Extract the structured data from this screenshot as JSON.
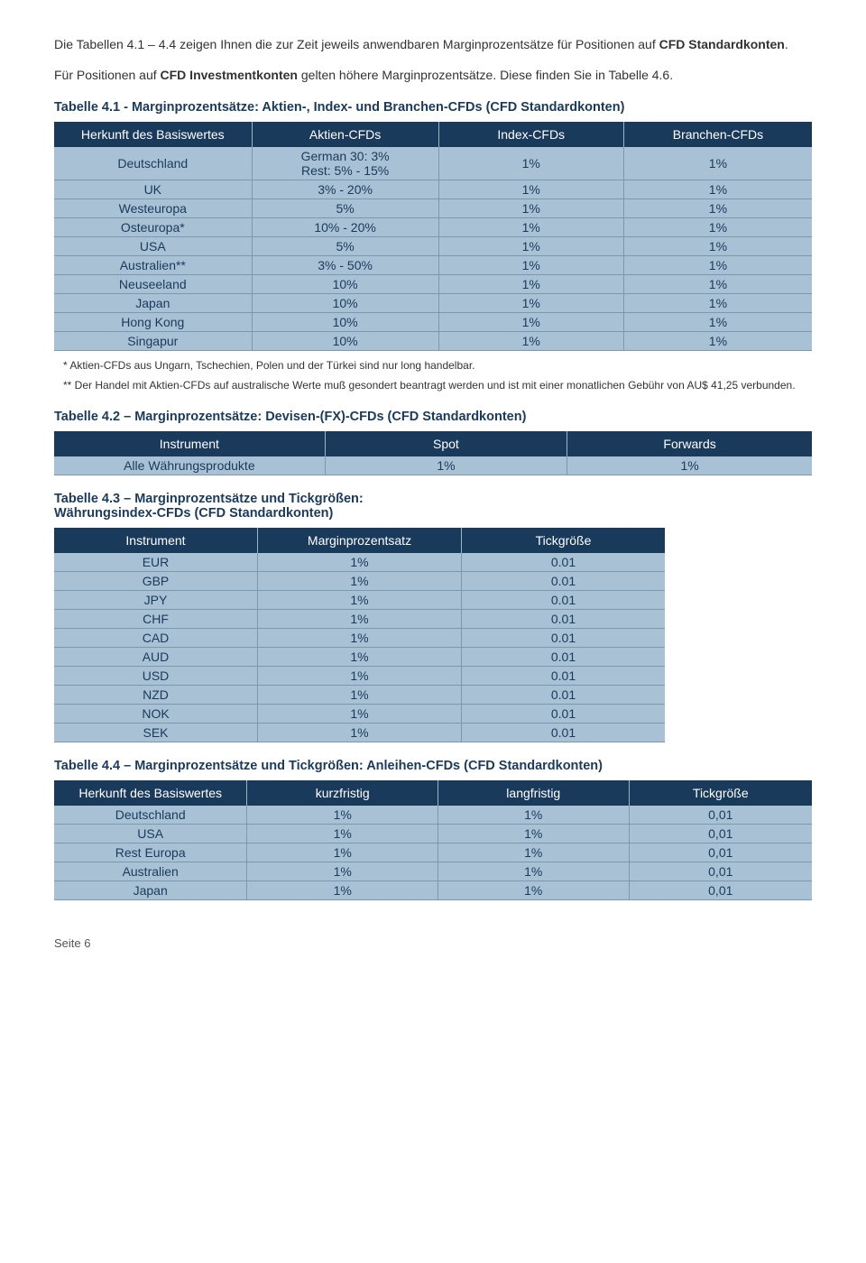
{
  "intro": {
    "p1_a": "Die Tabellen 4.1 – 4.4 zeigen Ihnen die zur Zeit jeweils anwendbaren Marginprozentsätze für Positionen auf ",
    "p1_b": "CFD Standardkonten",
    "p1_c": ".",
    "p2_a": "Für Positionen auf ",
    "p2_b": "CFD Investmentkonten",
    "p2_c": " gelten höhere Marginprozentsätze. Diese finden Sie in Tabelle 4.6."
  },
  "table41": {
    "title": "Tabelle 4.1 - Marginprozentsätze: Aktien-, Index- und Branchen-CFDs (CFD Standardkonten)",
    "headers": [
      "Herkunft des Basiswertes",
      "Aktien-CFDs",
      "Index-CFDs",
      "Branchen-CFDs"
    ],
    "rows": [
      [
        "Deutschland",
        "German 30: 3%\nRest: 5% - 15%",
        "1%",
        "1%"
      ],
      [
        "UK",
        "3% - 20%",
        "1%",
        "1%"
      ],
      [
        "Westeuropa",
        "5%",
        "1%",
        "1%"
      ],
      [
        "Osteuropa*",
        "10% - 20%",
        "1%",
        "1%"
      ],
      [
        "USA",
        "5%",
        "1%",
        "1%"
      ],
      [
        "Australien**",
        "3% - 50%",
        "1%",
        "1%"
      ],
      [
        "Neuseeland",
        "10%",
        "1%",
        "1%"
      ],
      [
        "Japan",
        "10%",
        "1%",
        "1%"
      ],
      [
        "Hong Kong",
        "10%",
        "1%",
        "1%"
      ],
      [
        "Singapur",
        "10%",
        "1%",
        "1%"
      ]
    ],
    "col_widths": [
      "220px",
      "210px",
      "210px",
      "210px"
    ],
    "footnote1": "* Aktien-CFDs aus Ungarn, Tschechien, Polen und der Türkei sind nur long handelbar.",
    "footnote2": "** Der Handel mit Aktien-CFDs auf australische Werte muß gesondert beantragt werden und ist mit einer monatlichen Gebühr von AU$ 41,25 verbunden."
  },
  "table42": {
    "title": "Tabelle 4.2 – Marginprozentsätze: Devisen-(FX)-CFDs (CFD Standardkonten)",
    "headers": [
      "Instrument",
      "Spot",
      "Forwards"
    ],
    "rows": [
      [
        "Alle Währungsprodukte",
        "1%",
        "1%"
      ]
    ],
    "col_widths": [
      "300px",
      "275px",
      "275px"
    ]
  },
  "table43": {
    "title": "Tabelle 4.3 – Marginprozentsätze und Tickgrößen:\nWährungsindex-CFDs (CFD Standardkonten)",
    "headers": [
      "Instrument",
      "Marginprozentsatz",
      "Tickgröße"
    ],
    "rows": [
      [
        "EUR",
        "1%",
        "0.01"
      ],
      [
        "GBP",
        "1%",
        "0.01"
      ],
      [
        "JPY",
        "1%",
        "0.01"
      ],
      [
        "CHF",
        "1%",
        "0.01"
      ],
      [
        "CAD",
        "1%",
        "0.01"
      ],
      [
        "AUD",
        "1%",
        "0.01"
      ],
      [
        "USD",
        "1%",
        "0.01"
      ],
      [
        "NZD",
        "1%",
        "0.01"
      ],
      [
        "NOK",
        "1%",
        "0.01"
      ],
      [
        "SEK",
        "1%",
        "0.01"
      ]
    ],
    "col_widths": [
      "205px",
      "205px",
      "205px"
    ]
  },
  "table44": {
    "title": "Tabelle 4.4 – Marginprozentsätze und Tickgrößen: Anleihen-CFDs (CFD Standardkonten)",
    "headers": [
      "Herkunft des Basiswertes",
      "kurzfristig",
      "langfristig",
      "Tickgröße"
    ],
    "rows": [
      [
        "Deutschland",
        "1%",
        "1%",
        "0,01"
      ],
      [
        "USA",
        "1%",
        "1%",
        "0,01"
      ],
      [
        "Rest Europa",
        "1%",
        "1%",
        "0,01"
      ],
      [
        "Australien",
        "1%",
        "1%",
        "0,01"
      ],
      [
        "Japan",
        "1%",
        "1%",
        "0,01"
      ]
    ],
    "col_widths": [
      "215px",
      "215px",
      "215px",
      "205px"
    ]
  },
  "footer": "Seite 6",
  "colors": {
    "header_bg": "#1a3a5c",
    "header_fg": "#ffffff",
    "cell_bg": "#a8c1d4",
    "cell_fg": "#1a3a5c",
    "border": "#7a99b0"
  }
}
